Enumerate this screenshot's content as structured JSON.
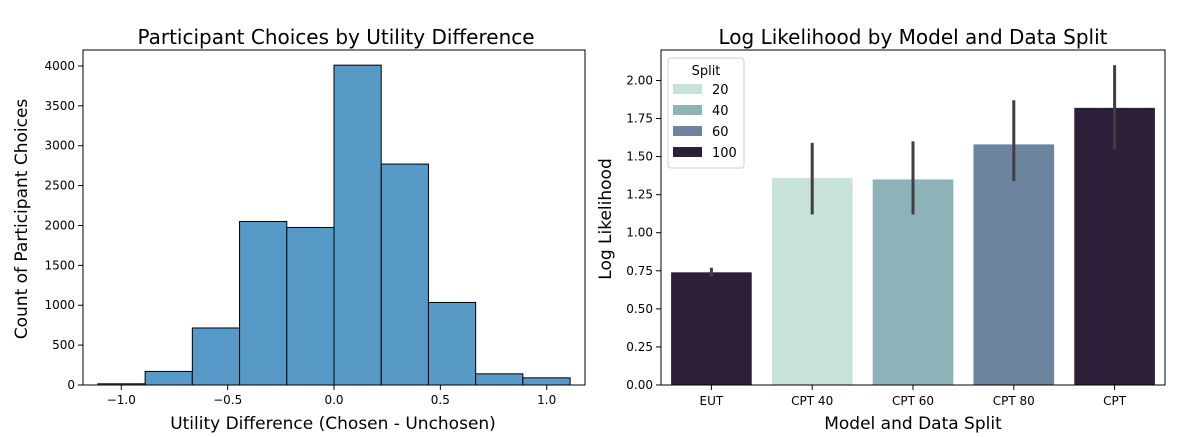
{
  "chart_data": [
    {
      "type": "bar",
      "subtype": "histogram",
      "title": "Participant Choices by Utility Difference",
      "xlabel": "Utility Difference (Chosen - Unchosen)",
      "ylabel": "Count of Participant Choices",
      "xlim": [
        -1.18,
        1.18
      ],
      "ylim": [
        0,
        4200
      ],
      "xticks": [
        -1.0,
        -0.5,
        0.0,
        0.5,
        1.0
      ],
      "xtick_labels": [
        "−1.0",
        "−0.5",
        "0.0",
        "0.5",
        "1.0"
      ],
      "yticks": [
        0,
        500,
        1000,
        1500,
        2000,
        2500,
        3000,
        3500,
        4000
      ],
      "ytick_labels": [
        "0",
        "500",
        "1000",
        "1500",
        "2000",
        "2500",
        "3000",
        "3500",
        "4000"
      ],
      "color": "#5799c7",
      "bins": [
        {
          "x0": -1.11,
          "x1": -0.888,
          "count": 15
        },
        {
          "x0": -0.888,
          "x1": -0.666,
          "count": 170
        },
        {
          "x0": -0.666,
          "x1": -0.444,
          "count": 715
        },
        {
          "x0": -0.444,
          "x1": -0.222,
          "count": 2050
        },
        {
          "x0": -0.222,
          "x1": 0.0,
          "count": 1975
        },
        {
          "x0": 0.0,
          "x1": 0.222,
          "count": 4010
        },
        {
          "x0": 0.222,
          "x1": 0.444,
          "count": 2770
        },
        {
          "x0": 0.444,
          "x1": 0.666,
          "count": 1035
        },
        {
          "x0": 0.666,
          "x1": 0.888,
          "count": 140
        },
        {
          "x0": 0.888,
          "x1": 1.11,
          "count": 90
        }
      ],
      "grid": false
    },
    {
      "type": "bar",
      "title": "Log Likelihood by Model and Data Split",
      "xlabel": "Model and Data Split",
      "ylabel": "Log Likelihood",
      "ylim": [
        0,
        2.2
      ],
      "yticks": [
        0.0,
        0.25,
        0.5,
        0.75,
        1.0,
        1.25,
        1.5,
        1.75,
        2.0
      ],
      "ytick_labels": [
        "0.00",
        "0.25",
        "0.50",
        "0.75",
        "1.00",
        "1.25",
        "1.50",
        "1.75",
        "2.00"
      ],
      "categories": [
        "EUT",
        "CPT 40",
        "CPT 60",
        "CPT 80",
        "CPT"
      ],
      "values": [
        0.74,
        1.36,
        1.35,
        1.58,
        1.82
      ],
      "ci_low": [
        0.71,
        1.12,
        1.12,
        1.34,
        1.55
      ],
      "ci_high": [
        0.77,
        1.59,
        1.6,
        1.87,
        2.1
      ],
      "bar_split": [
        "100",
        "20",
        "40",
        "60",
        "100"
      ],
      "legend": {
        "title": "Split",
        "placement": "top-left",
        "entries": [
          {
            "label": "20",
            "color": "#c6e2da"
          },
          {
            "label": "40",
            "color": "#8db3b8"
          },
          {
            "label": "60",
            "color": "#6d849f"
          },
          {
            "label": "100",
            "color": "#2e1f38"
          }
        ]
      },
      "errorbar_color": "#3f3f3f",
      "grid": false
    }
  ]
}
